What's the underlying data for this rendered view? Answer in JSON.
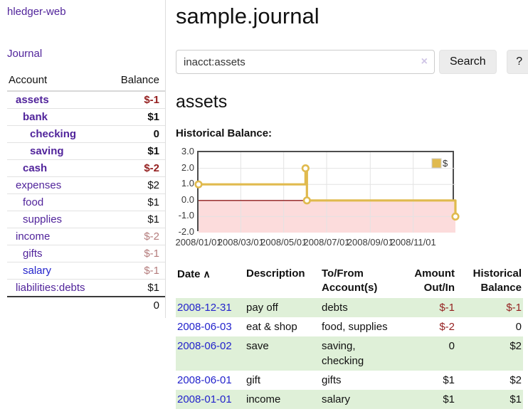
{
  "sidebar": {
    "app_title": "hledger-web",
    "nav": {
      "journal_label": "Journal"
    },
    "accounts_table": {
      "headers": {
        "account": "Account",
        "balance": "Balance"
      },
      "rows": [
        {
          "name": "assets",
          "balance": "$-1",
          "depth": 1,
          "bold": true,
          "tone": "neg"
        },
        {
          "name": "bank",
          "balance": "$1",
          "depth": 2,
          "bold": true,
          "tone": "pos"
        },
        {
          "name": "checking",
          "balance": "0",
          "depth": 3,
          "bold": true,
          "tone": "pos"
        },
        {
          "name": "saving",
          "balance": "$1",
          "depth": 3,
          "bold": true,
          "tone": "pos"
        },
        {
          "name": "cash",
          "balance": "$-2",
          "depth": 2,
          "bold": true,
          "tone": "neg"
        },
        {
          "name": "expenses",
          "balance": "$2",
          "depth": 1,
          "bold": false,
          "tone": "pos"
        },
        {
          "name": "food",
          "balance": "$1",
          "depth": 2,
          "bold": false,
          "tone": "pos"
        },
        {
          "name": "supplies",
          "balance": "$1",
          "depth": 2,
          "bold": false,
          "tone": "pos"
        },
        {
          "name": "income",
          "balance": "$-2",
          "depth": 1,
          "bold": false,
          "tone": "negpale"
        },
        {
          "name": "gifts",
          "balance": "$-1",
          "depth": 2,
          "bold": false,
          "tone": "negpale"
        },
        {
          "name": "salary",
          "balance": "$-1",
          "depth": 2,
          "bold": false,
          "tone": "negpale",
          "link_blue": true
        },
        {
          "name": "liabilities:debts",
          "balance": "$1",
          "depth": 1,
          "bold": false,
          "tone": "pos"
        }
      ],
      "total": "0"
    }
  },
  "main": {
    "title": "sample.journal",
    "search": {
      "value": "inacct:assets",
      "clear_icon": "×",
      "button_label": "Search",
      "help_label": "?"
    },
    "account_heading": "assets",
    "chart_label": "Historical Balance:",
    "register_table": {
      "headers": [
        "Date",
        "Description",
        "To/From Account(s)",
        "Amount Out/In",
        "Historical Balance"
      ],
      "sort_indicator": "∧",
      "rows": [
        {
          "date": "2008-12-31",
          "description": "pay off",
          "accounts": "debts",
          "amount": "$-1",
          "amount_tone": "neg",
          "balance": "$-1",
          "balance_tone": "neg"
        },
        {
          "date": "2008-06-03",
          "description": "eat & shop",
          "accounts": "food, supplies",
          "amount": "$-2",
          "amount_tone": "neg",
          "balance": "0",
          "balance_tone": "pos"
        },
        {
          "date": "2008-06-02",
          "description": "save",
          "accounts": "saving, checking",
          "amount": "0",
          "amount_tone": "pos",
          "balance": "$2",
          "balance_tone": "pos"
        },
        {
          "date": "2008-06-01",
          "description": "gift",
          "accounts": "gifts",
          "amount": "$1",
          "amount_tone": "pos",
          "balance": "$2",
          "balance_tone": "pos"
        },
        {
          "date": "2008-01-01",
          "description": "income",
          "accounts": "salary",
          "amount": "$1",
          "amount_tone": "pos",
          "balance": "$1",
          "balance_tone": "pos"
        }
      ]
    }
  },
  "chart_data": {
    "type": "line",
    "style": "step-after",
    "title": "Historical Balance:",
    "series": [
      {
        "name": "$",
        "points": [
          {
            "date": "2008-01-01",
            "value": 1
          },
          {
            "date": "2008-06-01",
            "value": 2
          },
          {
            "date": "2008-06-03",
            "value": 0
          },
          {
            "date": "2008-12-31",
            "value": -1
          }
        ]
      }
    ],
    "x_domain": [
      "2008-01-01",
      "2008-12-31"
    ],
    "ylim": [
      -2,
      3
    ],
    "y_ticks": [
      3.0,
      2.0,
      1.0,
      0.0,
      -1.0,
      -2.0
    ],
    "x_tick_labels": [
      "2008/01/01",
      "2008/03/01",
      "2008/05/01",
      "2008/07/01",
      "2008/09/01",
      "2008/11/01"
    ],
    "grid": true,
    "legend": {
      "label": "$",
      "position": "top-right"
    }
  },
  "colors": {
    "link_purple": "#51249b",
    "link_blue": "#2323cc",
    "negative_strong": "#941f1f",
    "negative_pale": "#b47c7c",
    "row_green": "#dff0d8",
    "chart_line": "#e0ba4e",
    "chart_negative_fill": "#fcdcdc",
    "chart_zero_line": "#8f1d1d",
    "chart_grid": "#e3e3e3",
    "chart_border": "#4d4d4d"
  }
}
